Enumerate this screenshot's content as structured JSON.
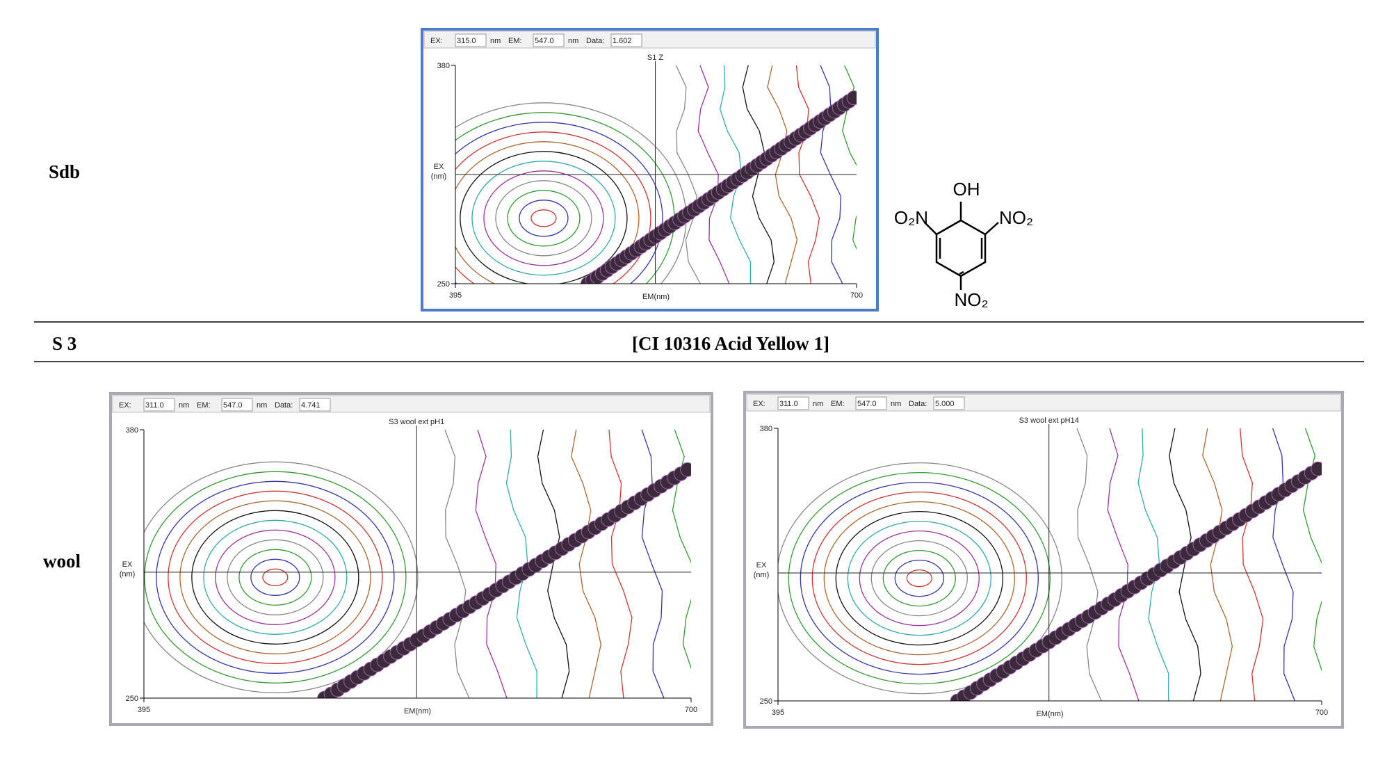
{
  "sdb": {
    "label": "Sdb",
    "panel": {
      "header": {
        "ex_label": "EX:",
        "ex": {
          "value": 315,
          "label": "315.0"
        },
        "ex_unit": "nm",
        "em_label": "EM:",
        "em": {
          "value": 547,
          "label": "547.0"
        },
        "em_unit": "nm",
        "data_label": "Data:",
        "data": "1.602"
      },
      "title": "S1 Z",
      "x_axis": {
        "label": "EM(nm)",
        "ticks": [
          395,
          700
        ]
      },
      "y_axis": {
        "label": [
          "EX",
          "(nm)"
        ],
        "ticks": [
          250,
          380
        ]
      }
    },
    "structure": {
      "top": "OH",
      "left": "O₂N",
      "right": "NO₂",
      "bottom": "NO₂"
    }
  },
  "section": {
    "id": "S 3",
    "title": "[CI 10316 Acid Yellow 1]"
  },
  "wool": {
    "label": "wool",
    "panels": [
      {
        "header": {
          "ex_label": "EX:",
          "ex": {
            "value": 311,
            "label": "311.0"
          },
          "ex_unit": "nm",
          "em_label": "EM:",
          "em": {
            "value": 547,
            "label": "547.0"
          },
          "em_unit": "nm",
          "data_label": "Data:",
          "data": "4.741"
        },
        "title": "S3 wool ext pH1",
        "x_axis": {
          "label": "EM(nm)",
          "ticks": [
            395,
            700
          ]
        },
        "y_axis": {
          "label": [
            "EX",
            "(nm)"
          ],
          "ticks": [
            250,
            380
          ]
        }
      },
      {
        "header": {
          "ex_label": "EX:",
          "ex": {
            "value": 311,
            "label": "311.0"
          },
          "ex_unit": "nm",
          "em_label": "EM:",
          "em": {
            "value": 547,
            "label": "547.0"
          },
          "em_unit": "nm",
          "data_label": "Data:",
          "data": "5.000"
        },
        "title": "S3 wool ext pH14",
        "x_axis": {
          "label": "EM(nm)",
          "ticks": [
            395,
            700
          ]
        },
        "y_axis": {
          "label": [
            "EX",
            "(nm)"
          ],
          "ticks": [
            250,
            380
          ]
        }
      }
    ]
  }
}
